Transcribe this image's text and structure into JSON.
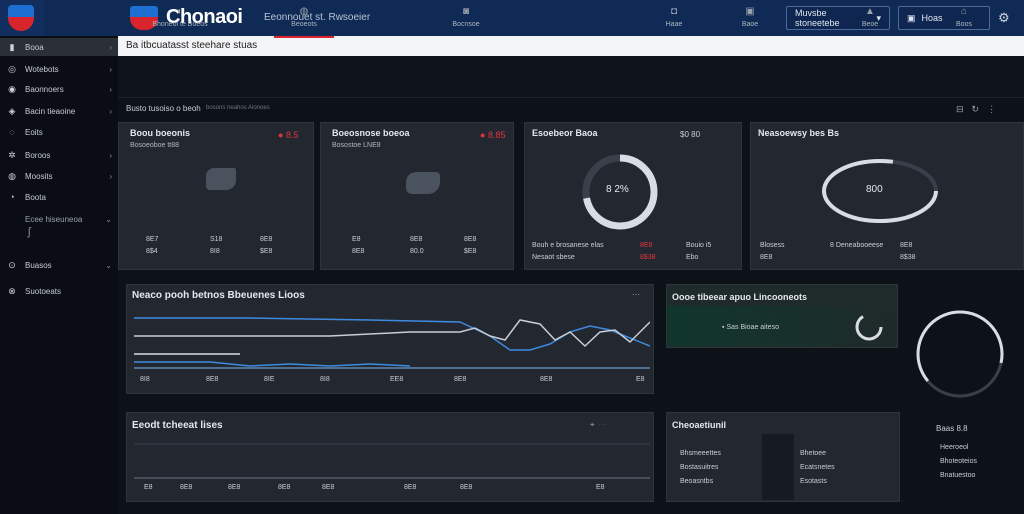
{
  "app": {
    "brand": "Chonaoi",
    "subtitle": "Eeonnouet st. Rwsoeier",
    "search_text": "Ba itbcuatasst steehare stuas"
  },
  "top_buttons": [
    {
      "label": "Muvsbe stoneetebe",
      "icon": "chevron-down-icon"
    },
    {
      "label": "Hoas",
      "icon": "user-icon"
    }
  ],
  "sidebar": {
    "items": [
      {
        "label": "Booa",
        "icon": "chart-icon"
      },
      {
        "label": "Wotebots",
        "icon": "grid-icon"
      },
      {
        "label": "Baonnoers",
        "icon": "layers-icon"
      },
      {
        "label": "Bacin tieaoine",
        "icon": "settings-icon"
      },
      {
        "label": "Eoits",
        "icon": "pin-icon"
      },
      {
        "label": "Boroos",
        "icon": "gear-icon"
      },
      {
        "label": "Moosits",
        "icon": "flask-icon"
      },
      {
        "label": "Boota",
        "icon": "power-icon"
      },
      {
        "label": "Ecee hiseuneoa",
        "icon": "tools-icon"
      },
      {
        "label": "Buasos",
        "icon": "link-icon"
      },
      {
        "label": "Suotoeats",
        "icon": "clock-icon"
      }
    ]
  },
  "tabs": [
    {
      "label": "Bhoneoi te Boeos",
      "icon": "flame-icon"
    },
    {
      "label": "Beoeots",
      "icon": "drop-icon"
    },
    {
      "label": "Bocnsoe",
      "icon": "valve-icon"
    },
    {
      "label": "Haae",
      "icon": "camera-icon"
    },
    {
      "label": "Baoe",
      "icon": "globe-icon"
    },
    {
      "label": "Beoe",
      "icon": "alert-icon"
    },
    {
      "label": "Boos",
      "icon": "factory-icon"
    }
  ],
  "section": {
    "title": "Busto tusoiso o beoh",
    "sub": "bosons neahos Aionoes"
  },
  "kpis": [
    {
      "title": "Boou boeonis",
      "sub": "Bosoeoboe tt88",
      "delta": "8.5",
      "stats": [
        {
          "k": "8E7",
          "v": "8$4"
        },
        {
          "k": "S18",
          "v": "8I8"
        },
        {
          "k": "8E8",
          "v": "$E8"
        }
      ]
    },
    {
      "title": "Boeosnose boeoa",
      "sub": "Bosostoe LNE8",
      "delta": "8.85",
      "stats": [
        {
          "k": "E8",
          "v": "8E8"
        },
        {
          "k": "8E8",
          "v": "80.0"
        },
        {
          "k": "8E8",
          "v": "$E8"
        }
      ]
    },
    {
      "title": "Esoebeor Baoa",
      "sub": "",
      "delta": "$0 80",
      "gauge_value": "8 2%",
      "gauge": 0.72,
      "rows": [
        {
          "k": "Bouh e brosanese elas",
          "v": "8E8"
        },
        {
          "k": "Bouio i5",
          "v": "8 8E8"
        },
        {
          "k": "Nesaot sbese",
          "v": "8$38"
        },
        {
          "k": "Ebo",
          "v": "8 5E3"
        }
      ]
    },
    {
      "title": "Neasoewsy bes Bs",
      "sub": "",
      "delta": "",
      "gauge_value": "800",
      "gauge": 0.78,
      "rows": [
        {
          "k": "Blosess",
          "v": "8 Deneabooeese"
        },
        {
          "k": "8E8",
          "v": "8E8"
        },
        {
          "k": "Boe",
          "v": "8$38"
        }
      ]
    }
  ],
  "trend_panel": {
    "title": "Neaco pooh betnos Bbeuenes Lioos",
    "ticks": [
      "8I8",
      "8E8",
      "8IE",
      "8I8",
      "EE8",
      "8E8",
      "8E8",
      "E8"
    ]
  },
  "alert_panel": {
    "title": "Oooe tibeear apuo Lincooneots",
    "text": "Sas Bioae aiteso"
  },
  "bottom_panel": {
    "title": "Eeodt tcheeat lises",
    "ticks": [
      "E8",
      "8E8",
      "8E8",
      "8E8",
      "8E8",
      "8E8",
      "8E8",
      "E8"
    ]
  },
  "notes_panel": {
    "title": "Cheoaetiunil",
    "items": [
      "Bhsmeeettes",
      "Bostasuitres",
      "Beoasntbs"
    ],
    "items2": [
      "Bhetoee",
      "Ecatsnetes",
      "Esotasts"
    ]
  },
  "side_info": {
    "value": "Baas 8.8",
    "lines": [
      "Heeroeol",
      "Bhoteoteios",
      "Bnatuestoo"
    ]
  },
  "colors": {
    "brand_blue": "#1d6fd1",
    "brand_red": "#d8242c",
    "topbar": "#0f2a55",
    "panel": "#232830",
    "accent_line": "#3d8be0"
  }
}
